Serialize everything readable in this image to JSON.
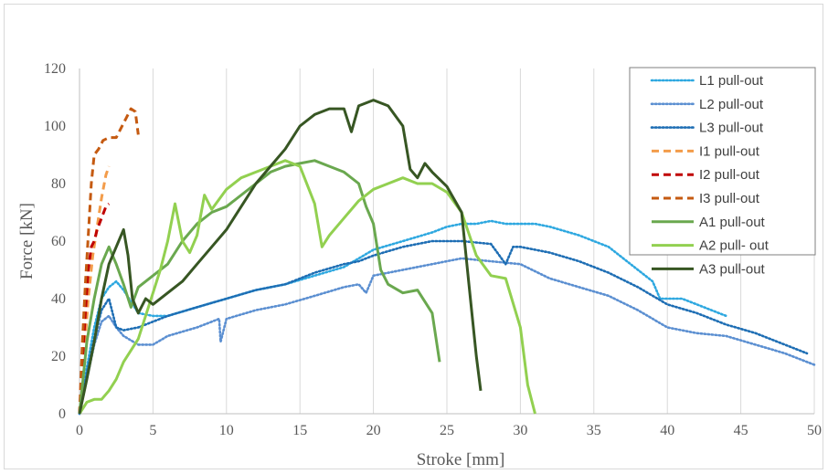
{
  "chart_data": {
    "type": "line",
    "title": "",
    "xlabel": "Stroke [mm]",
    "ylabel": "Force [kN]",
    "xlim": [
      0,
      50
    ],
    "ylim": [
      0,
      120
    ],
    "xticks": [
      0,
      5,
      10,
      15,
      20,
      25,
      30,
      35,
      40,
      45,
      50
    ],
    "yticks": [
      0,
      20,
      40,
      60,
      80,
      100,
      120
    ],
    "grid": "vertical",
    "legend_position": "top-right",
    "series": [
      {
        "name": "L1 pull-out",
        "color": "#2ea8e0",
        "style": "dotted",
        "points": [
          [
            0,
            0
          ],
          [
            0.5,
            16
          ],
          [
            1,
            30
          ],
          [
            1.5,
            40
          ],
          [
            2,
            44
          ],
          [
            2.5,
            46
          ],
          [
            3,
            43
          ],
          [
            4,
            35
          ],
          [
            5,
            34
          ],
          [
            6,
            34
          ],
          [
            8,
            37
          ],
          [
            10,
            40
          ],
          [
            12,
            43
          ],
          [
            14,
            45
          ],
          [
            16,
            48
          ],
          [
            18,
            51
          ],
          [
            20,
            57
          ],
          [
            22,
            60
          ],
          [
            24,
            63
          ],
          [
            25,
            65
          ],
          [
            26,
            66
          ],
          [
            27,
            66
          ],
          [
            28,
            67
          ],
          [
            29,
            66
          ],
          [
            30,
            66
          ],
          [
            31,
            66
          ],
          [
            32,
            65
          ],
          [
            34,
            62
          ],
          [
            36,
            58
          ],
          [
            38,
            50
          ],
          [
            39,
            46
          ],
          [
            39.5,
            40
          ],
          [
            40,
            40
          ],
          [
            41,
            40
          ],
          [
            42,
            38
          ],
          [
            43,
            36
          ],
          [
            44,
            34
          ]
        ]
      },
      {
        "name": "L2 pull-out",
        "color": "#5b8fd1",
        "style": "dotted",
        "points": [
          [
            0,
            0
          ],
          [
            0.5,
            12
          ],
          [
            1,
            24
          ],
          [
            1.5,
            32
          ],
          [
            2,
            34
          ],
          [
            2.5,
            30
          ],
          [
            3,
            27
          ],
          [
            4,
            24
          ],
          [
            5,
            24
          ],
          [
            6,
            27
          ],
          [
            8,
            30
          ],
          [
            9.5,
            33
          ],
          [
            9.6,
            25
          ],
          [
            10,
            33
          ],
          [
            12,
            36
          ],
          [
            14,
            38
          ],
          [
            16,
            41
          ],
          [
            18,
            44
          ],
          [
            19,
            45
          ],
          [
            19.5,
            42
          ],
          [
            20,
            48
          ],
          [
            22,
            50
          ],
          [
            24,
            52
          ],
          [
            26,
            54
          ],
          [
            28,
            53
          ],
          [
            30,
            52
          ],
          [
            32,
            47
          ],
          [
            34,
            44
          ],
          [
            36,
            41
          ],
          [
            38,
            36
          ],
          [
            40,
            30
          ],
          [
            42,
            28
          ],
          [
            44,
            27
          ],
          [
            46,
            24
          ],
          [
            48,
            21
          ],
          [
            50,
            17
          ]
        ]
      },
      {
        "name": "L3 pull-out",
        "color": "#1e6eb4",
        "style": "dotted",
        "points": [
          [
            0,
            0
          ],
          [
            0.5,
            14
          ],
          [
            1,
            26
          ],
          [
            1.5,
            36
          ],
          [
            2,
            40
          ],
          [
            2.5,
            30
          ],
          [
            3,
            29
          ],
          [
            4,
            30
          ],
          [
            5,
            32
          ],
          [
            6,
            34
          ],
          [
            8,
            37
          ],
          [
            10,
            40
          ],
          [
            12,
            43
          ],
          [
            14,
            45
          ],
          [
            16,
            49
          ],
          [
            18,
            52
          ],
          [
            19,
            53
          ],
          [
            20,
            55
          ],
          [
            22,
            58
          ],
          [
            24,
            60
          ],
          [
            25,
            60
          ],
          [
            26,
            60
          ],
          [
            28,
            59
          ],
          [
            29,
            52
          ],
          [
            29.5,
            58
          ],
          [
            30,
            58
          ],
          [
            32,
            56
          ],
          [
            34,
            53
          ],
          [
            36,
            49
          ],
          [
            38,
            44
          ],
          [
            40,
            38
          ],
          [
            42,
            35
          ],
          [
            44,
            31
          ],
          [
            46,
            28
          ],
          [
            48,
            24
          ],
          [
            49.5,
            21
          ]
        ]
      },
      {
        "name": "I1 pull-out",
        "color": "#f39c4a",
        "style": "dashed",
        "points": [
          [
            0,
            0
          ],
          [
            0.3,
            20
          ],
          [
            0.6,
            40
          ],
          [
            0.9,
            55
          ],
          [
            1.2,
            65
          ],
          [
            1.5,
            75
          ],
          [
            1.8,
            83
          ],
          [
            2,
            86
          ]
        ]
      },
      {
        "name": "I2 pull-out",
        "color": "#c00000",
        "style": "dashed",
        "points": [
          [
            0,
            0
          ],
          [
            0.2,
            18
          ],
          [
            0.4,
            35
          ],
          [
            0.6,
            50
          ],
          [
            0.8,
            58
          ],
          [
            1,
            60
          ],
          [
            1.2,
            64
          ],
          [
            1.5,
            68
          ],
          [
            1.8,
            72
          ],
          [
            2,
            73
          ]
        ]
      },
      {
        "name": "I3 pull-out",
        "color": "#c55a11",
        "style": "dashed",
        "points": [
          [
            0,
            0
          ],
          [
            0.2,
            25
          ],
          [
            0.4,
            45
          ],
          [
            0.6,
            62
          ],
          [
            0.8,
            80
          ],
          [
            1,
            90
          ],
          [
            1.3,
            92
          ],
          [
            1.6,
            95
          ],
          [
            2,
            96
          ],
          [
            2.5,
            96
          ],
          [
            3,
            101
          ],
          [
            3.5,
            106
          ],
          [
            3.8,
            105
          ],
          [
            4,
            97
          ]
        ]
      },
      {
        "name": "A1 pull-out",
        "color": "#6aa84f",
        "style": "solid",
        "points": [
          [
            0,
            0
          ],
          [
            0.5,
            25
          ],
          [
            1,
            40
          ],
          [
            1.5,
            52
          ],
          [
            2,
            58
          ],
          [
            2.5,
            52
          ],
          [
            3,
            45
          ],
          [
            3.5,
            37
          ],
          [
            4,
            44
          ],
          [
            5,
            48
          ],
          [
            6,
            52
          ],
          [
            7,
            60
          ],
          [
            8,
            66
          ],
          [
            9,
            70
          ],
          [
            10,
            72
          ],
          [
            12,
            80
          ],
          [
            13,
            84
          ],
          [
            14,
            86
          ],
          [
            15,
            87
          ],
          [
            16,
            88
          ],
          [
            17,
            86
          ],
          [
            18,
            84
          ],
          [
            19,
            80
          ],
          [
            19.5,
            72
          ],
          [
            20,
            66
          ],
          [
            20.5,
            50
          ],
          [
            21,
            45
          ],
          [
            22,
            42
          ],
          [
            23,
            43
          ],
          [
            24,
            35
          ],
          [
            24.5,
            18
          ]
        ]
      },
      {
        "name": "A2 pull- out",
        "color": "#92d050",
        "style": "solid",
        "points": [
          [
            0,
            0
          ],
          [
            0.5,
            4
          ],
          [
            1,
            5
          ],
          [
            1.5,
            5
          ],
          [
            2,
            8
          ],
          [
            2.5,
            12
          ],
          [
            3,
            18
          ],
          [
            4,
            26
          ],
          [
            5,
            42
          ],
          [
            5.5,
            50
          ],
          [
            6,
            60
          ],
          [
            6.5,
            73
          ],
          [
            7,
            60
          ],
          [
            7.5,
            56
          ],
          [
            8,
            62
          ],
          [
            8.5,
            76
          ],
          [
            9,
            71
          ],
          [
            10,
            78
          ],
          [
            11,
            82
          ],
          [
            12,
            84
          ],
          [
            13,
            86
          ],
          [
            14,
            88
          ],
          [
            15,
            86
          ],
          [
            16,
            73
          ],
          [
            16.5,
            58
          ],
          [
            17,
            62
          ],
          [
            18,
            68
          ],
          [
            19,
            74
          ],
          [
            20,
            78
          ],
          [
            21,
            80
          ],
          [
            22,
            82
          ],
          [
            23,
            80
          ],
          [
            24,
            80
          ],
          [
            25,
            77
          ],
          [
            26,
            70
          ],
          [
            27,
            55
          ],
          [
            28,
            48
          ],
          [
            29,
            47
          ],
          [
            30,
            30
          ],
          [
            30.5,
            10
          ],
          [
            31,
            0
          ]
        ]
      },
      {
        "name": "A3 pull-out",
        "color": "#375623",
        "style": "solid",
        "points": [
          [
            0,
            0
          ],
          [
            0.5,
            12
          ],
          [
            1,
            25
          ],
          [
            1.5,
            40
          ],
          [
            2,
            52
          ],
          [
            2.5,
            58
          ],
          [
            3,
            64
          ],
          [
            3.3,
            55
          ],
          [
            3.6,
            40
          ],
          [
            4,
            35
          ],
          [
            4.5,
            40
          ],
          [
            5,
            38
          ],
          [
            6,
            42
          ],
          [
            7,
            46
          ],
          [
            8,
            52
          ],
          [
            9,
            58
          ],
          [
            10,
            64
          ],
          [
            11,
            72
          ],
          [
            12,
            80
          ],
          [
            13,
            86
          ],
          [
            14,
            92
          ],
          [
            15,
            100
          ],
          [
            16,
            104
          ],
          [
            17,
            106
          ],
          [
            18,
            106
          ],
          [
            18.5,
            98
          ],
          [
            19,
            107
          ],
          [
            20,
            109
          ],
          [
            21,
            107
          ],
          [
            22,
            100
          ],
          [
            22.5,
            85
          ],
          [
            23,
            82
          ],
          [
            23.5,
            87
          ],
          [
            24,
            84
          ],
          [
            25,
            79
          ],
          [
            26,
            70
          ],
          [
            26.5,
            45
          ],
          [
            27,
            20
          ],
          [
            27.3,
            8
          ]
        ]
      }
    ]
  }
}
